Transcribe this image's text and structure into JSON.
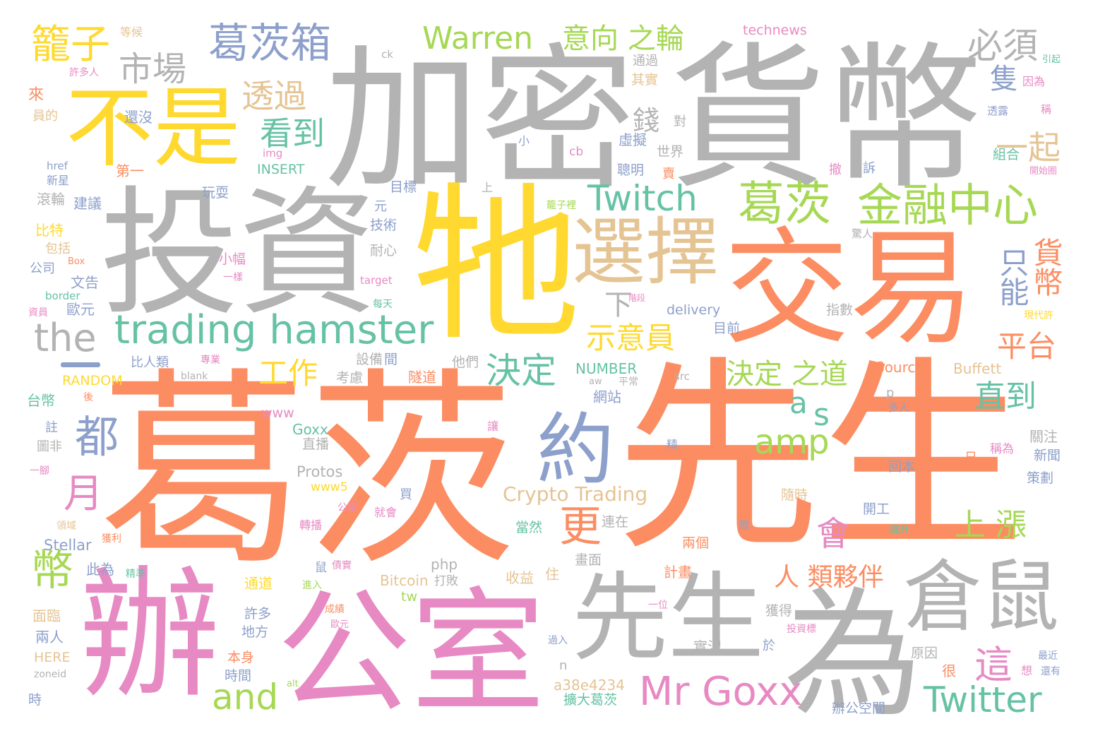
{
  "palette": {
    "orange": "#fc8d62",
    "pink": "#e78ac3",
    "blue": "#8da0cb",
    "green": "#66c2a5",
    "lime": "#a6d854",
    "yellow": "#ffd92f",
    "tan": "#e5c494",
    "gray": "#b3b3b3"
  },
  "words": [
    {
      "text": "葛茨",
      "color": "orange"
    },
    {
      "text": "先生",
      "color": "orange"
    },
    {
      "text": "加密",
      "color": "gray"
    },
    {
      "text": "貨幣",
      "color": "gray"
    },
    {
      "text": "投資",
      "color": "gray"
    },
    {
      "text": "牠",
      "color": "yellow"
    },
    {
      "text": "交易",
      "color": "orange"
    },
    {
      "text": "辦",
      "color": "pink"
    },
    {
      "text": "公室",
      "color": "pink"
    },
    {
      "text": "先生",
      "color": "gray"
    },
    {
      "text": "為",
      "color": "gray"
    },
    {
      "text": "倉鼠",
      "color": "gray"
    },
    {
      "text": "不是",
      "color": "yellow"
    },
    {
      "text": "選擇",
      "color": "tan"
    },
    {
      "text": "約",
      "color": "blue"
    },
    {
      "text": "trading hamster",
      "color": "green"
    },
    {
      "text": "Mr Goxx",
      "color": "pink"
    },
    {
      "text": "Twitch",
      "color": "green"
    },
    {
      "text": "Twitter",
      "color": "green"
    },
    {
      "text": "葛茨",
      "color": "lime"
    },
    {
      "text": "金融中心",
      "color": "lime"
    },
    {
      "text": "葛茨箱",
      "color": "blue"
    },
    {
      "text": "Warren",
      "color": "lime"
    },
    {
      "text": "the",
      "color": "gray"
    },
    {
      "text": "籠子",
      "color": "yellow"
    },
    {
      "text": "市場",
      "color": "gray"
    },
    {
      "text": "意向 之輪",
      "color": "lime"
    },
    {
      "text": "透過",
      "color": "tan"
    },
    {
      "text": "看到",
      "color": "green"
    },
    {
      "text": "錢",
      "color": "gray"
    },
    {
      "text": "必須",
      "color": "gray"
    },
    {
      "text": "一起",
      "color": "tan"
    },
    {
      "text": "示意員",
      "color": "yellow"
    },
    {
      "text": "工作",
      "color": "yellow"
    },
    {
      "text": "決定",
      "color": "green"
    },
    {
      "text": "決定 之道",
      "color": "lime"
    },
    {
      "text": "直到",
      "color": "green"
    },
    {
      "text": "平台",
      "color": "orange"
    },
    {
      "text": "上 漲",
      "color": "lime"
    },
    {
      "text": "人 類夥伴",
      "color": "orange"
    },
    {
      "text": "amp",
      "color": "lime"
    },
    {
      "text": "and",
      "color": "lime"
    },
    {
      "text": "都",
      "color": "blue"
    },
    {
      "text": "月",
      "color": "pink"
    },
    {
      "text": "幣",
      "color": "lime"
    },
    {
      "text": "更",
      "color": "orange"
    },
    {
      "text": "會",
      "color": "pink"
    },
    {
      "text": "這",
      "color": "pink"
    },
    {
      "text": "a",
      "color": "green"
    },
    {
      "text": "s",
      "color": "green"
    },
    {
      "text": "下",
      "color": "gray"
    },
    {
      "text": "Crypto Trading",
      "color": "tan"
    },
    {
      "text": "technews",
      "color": "pink"
    },
    {
      "text": "NUMBER",
      "color": "green"
    },
    {
      "text": "Source",
      "color": "orange"
    },
    {
      "text": "Buffett",
      "color": "tan"
    },
    {
      "text": "Protos",
      "color": "gray"
    },
    {
      "text": "Goxx",
      "color": "green"
    },
    {
      "text": "www5",
      "color": "yellow"
    },
    {
      "text": "Stellar",
      "color": "blue"
    },
    {
      "text": "php",
      "color": "gray"
    },
    {
      "text": "Bitcoin",
      "color": "tan"
    },
    {
      "text": "打敗",
      "color": "gray"
    },
    {
      "text": "a38e4234",
      "color": "tan"
    },
    {
      "text": "HERE",
      "color": "tan"
    },
    {
      "text": "zoneid",
      "color": "gray"
    },
    {
      "text": "INSERT",
      "color": "green"
    },
    {
      "text": "RANDOM",
      "color": "yellow"
    },
    {
      "text": "delivery",
      "color": "blue"
    },
    {
      "text": "www",
      "color": "pink"
    },
    {
      "text": "blank",
      "color": "gray"
    },
    {
      "text": "src",
      "color": "gray"
    },
    {
      "text": "target",
      "color": "pink"
    },
    {
      "text": "border",
      "color": "green"
    },
    {
      "text": "href",
      "color": "blue"
    },
    {
      "text": "img",
      "color": "pink"
    },
    {
      "text": "cb",
      "color": "pink"
    },
    {
      "text": "ck",
      "color": "gray"
    },
    {
      "text": "aw",
      "color": "gray"
    },
    {
      "text": "p",
      "color": "gray"
    },
    {
      "text": "n",
      "color": "gray"
    },
    {
      "text": "tw",
      "color": "lime"
    },
    {
      "text": "alt",
      "color": "lime"
    },
    {
      "text": "Box",
      "color": "orange"
    },
    {
      "text": "等候",
      "color": "tan"
    },
    {
      "text": "許多人",
      "color": "pink"
    },
    {
      "text": "來",
      "color": "orange"
    },
    {
      "text": "還沒",
      "color": "blue"
    },
    {
      "text": "員的",
      "color": "tan"
    },
    {
      "text": "新星",
      "color": "blue"
    },
    {
      "text": "滾輪",
      "color": "gray"
    },
    {
      "text": "建議",
      "color": "blue"
    },
    {
      "text": "比特",
      "color": "yellow"
    },
    {
      "text": "包括",
      "color": "tan"
    },
    {
      "text": "公司",
      "color": "blue"
    },
    {
      "text": "文告",
      "color": "blue"
    },
    {
      "text": "資員",
      "color": "pink"
    },
    {
      "text": "歐元",
      "color": "blue"
    },
    {
      "text": "第一",
      "color": "orange"
    },
    {
      "text": "玩耍",
      "color": "blue"
    },
    {
      "text": "比人類",
      "color": "blue"
    },
    {
      "text": "專業",
      "color": "pink"
    },
    {
      "text": "台幣",
      "color": "green"
    },
    {
      "text": "後",
      "color": "orange"
    },
    {
      "text": "註",
      "color": "blue"
    },
    {
      "text": "圖非",
      "color": "gray"
    },
    {
      "text": "一腳",
      "color": "pink"
    },
    {
      "text": "領域",
      "color": "tan"
    },
    {
      "text": "獲利",
      "color": "orange"
    },
    {
      "text": "此為",
      "color": "blue"
    },
    {
      "text": "精準",
      "color": "green"
    },
    {
      "text": "面臨",
      "color": "tan"
    },
    {
      "text": "兩人",
      "color": "blue"
    },
    {
      "text": "時",
      "color": "blue"
    },
    {
      "text": "通過",
      "color": "gray"
    },
    {
      "text": "其實",
      "color": "tan"
    },
    {
      "text": "對",
      "color": "gray"
    },
    {
      "text": "世界",
      "color": "gray"
    },
    {
      "text": "聰明",
      "color": "blue"
    },
    {
      "text": "賣",
      "color": "orange"
    },
    {
      "text": "虛擬",
      "color": "blue"
    },
    {
      "text": "小",
      "color": "blue"
    },
    {
      "text": "目標",
      "color": "blue"
    },
    {
      "text": "上",
      "color": "gray"
    },
    {
      "text": "元",
      "color": "blue"
    },
    {
      "text": "技術",
      "color": "blue"
    },
    {
      "text": "籠子裡",
      "color": "lime"
    },
    {
      "text": "耐心",
      "color": "gray"
    },
    {
      "text": "小幅",
      "color": "pink"
    },
    {
      "text": "一樣",
      "color": "pink"
    },
    {
      "text": "每天",
      "color": "green"
    },
    {
      "text": "階段",
      "color": "pink"
    },
    {
      "text": "設備",
      "color": "gray"
    },
    {
      "text": "間",
      "color": "blue"
    },
    {
      "text": "考慮",
      "color": "gray"
    },
    {
      "text": "他們",
      "color": "gray"
    },
    {
      "text": "隧道",
      "color": "orange"
    },
    {
      "text": "平常",
      "color": "gray"
    },
    {
      "text": "網站",
      "color": "blue"
    },
    {
      "text": "讓",
      "color": "pink"
    },
    {
      "text": "直播",
      "color": "gray"
    },
    {
      "text": "精",
      "color": "blue"
    },
    {
      "text": "買",
      "color": "blue"
    },
    {
      "text": "公室",
      "color": "pink"
    },
    {
      "text": "就會",
      "color": "pink"
    },
    {
      "text": "轉播",
      "color": "pink"
    },
    {
      "text": "當然",
      "color": "green"
    },
    {
      "text": "連在",
      "color": "gray"
    },
    {
      "text": "鼠",
      "color": "blue"
    },
    {
      "text": "債實",
      "color": "pink"
    },
    {
      "text": "進入",
      "color": "lime"
    },
    {
      "text": "通道",
      "color": "yellow"
    },
    {
      "text": "收益",
      "color": "tan"
    },
    {
      "text": "住",
      "color": "tan"
    },
    {
      "text": "畫面",
      "color": "gray"
    },
    {
      "text": "計畫",
      "color": "orange"
    },
    {
      "text": "兩個",
      "color": "orange"
    },
    {
      "text": "一位",
      "color": "pink"
    },
    {
      "text": "獲得",
      "color": "gray"
    },
    {
      "text": "投資標",
      "color": "pink"
    },
    {
      "text": "許多",
      "color": "blue"
    },
    {
      "text": "地方",
      "color": "blue"
    },
    {
      "text": "成績",
      "color": "orange"
    },
    {
      "text": "歐元",
      "color": "pink"
    },
    {
      "text": "本身",
      "color": "orange"
    },
    {
      "text": "時間",
      "color": "blue"
    },
    {
      "text": "過入",
      "color": "blue"
    },
    {
      "text": "擴大葛茨",
      "color": "green"
    },
    {
      "text": "實況",
      "color": "gray"
    },
    {
      "text": "於",
      "color": "blue"
    },
    {
      "text": "很",
      "color": "orange"
    },
    {
      "text": "原因",
      "color": "gray"
    },
    {
      "text": "辦公空間",
      "color": "blue"
    },
    {
      "text": "想",
      "color": "pink"
    },
    {
      "text": "最近",
      "color": "blue"
    },
    {
      "text": "還有",
      "color": "blue"
    },
    {
      "text": "隨時",
      "color": "tan"
    },
    {
      "text": "開工",
      "color": "blue"
    },
    {
      "text": "款",
      "color": "blue"
    },
    {
      "text": "飆升",
      "color": "green"
    },
    {
      "text": "回本",
      "color": "blue"
    },
    {
      "text": "日",
      "color": "orange"
    },
    {
      "text": "稱為",
      "color": "pink"
    },
    {
      "text": "策劃",
      "color": "blue"
    },
    {
      "text": "新聞",
      "color": "blue"
    },
    {
      "text": "關注",
      "color": "gray"
    },
    {
      "text": "多人",
      "color": "blue"
    },
    {
      "text": "目前",
      "color": "blue"
    },
    {
      "text": "指數",
      "color": "gray"
    },
    {
      "text": "現代許",
      "color": "yellow"
    },
    {
      "text": "驚人",
      "color": "gray"
    },
    {
      "text": "開始圈",
      "color": "pink"
    },
    {
      "text": "撤",
      "color": "pink"
    },
    {
      "text": "訴",
      "color": "blue"
    },
    {
      "text": "組合",
      "color": "green"
    },
    {
      "text": "稱",
      "color": "pink"
    },
    {
      "text": "透露",
      "color": "blue"
    },
    {
      "text": "因為",
      "color": "pink"
    },
    {
      "text": "引起",
      "color": "green"
    },
    {
      "text": "隻",
      "color": "blue"
    },
    {
      "text": "貨幣",
      "color": "orange"
    },
    {
      "text": "只能",
      "color": "blue"
    }
  ]
}
